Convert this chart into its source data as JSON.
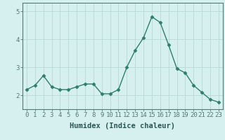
{
  "x": [
    0,
    1,
    2,
    3,
    4,
    5,
    6,
    7,
    8,
    9,
    10,
    11,
    12,
    13,
    14,
    15,
    16,
    17,
    18,
    19,
    20,
    21,
    22,
    23
  ],
  "y": [
    2.2,
    2.35,
    2.7,
    2.3,
    2.2,
    2.2,
    2.3,
    2.4,
    2.4,
    2.05,
    2.05,
    2.2,
    3.0,
    3.6,
    4.05,
    4.8,
    4.6,
    3.8,
    2.95,
    2.8,
    2.35,
    2.1,
    1.85,
    1.75
  ],
  "line_color": "#2e7d6e",
  "marker": "D",
  "marker_size": 2.5,
  "linewidth": 1.0,
  "bg_color": "#d6f0f0",
  "grid_color": "#b8d8d8",
  "xlabel": "Humidex (Indice chaleur)",
  "yticks": [
    2,
    3,
    4,
    5
  ],
  "ylim": [
    1.5,
    5.3
  ],
  "xlim": [
    -0.5,
    23.5
  ],
  "xlabel_fontsize": 7.5,
  "tick_fontsize": 6.5,
  "spine_color": "#557777"
}
